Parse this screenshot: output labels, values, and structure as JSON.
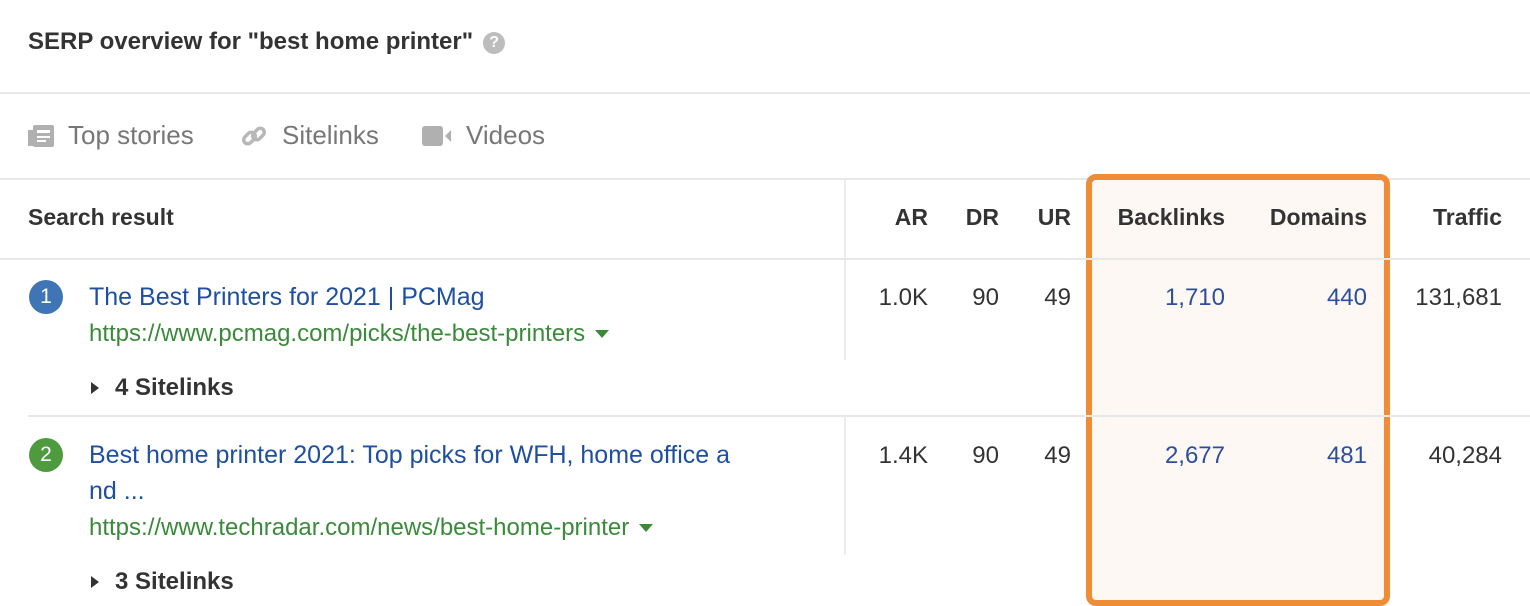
{
  "header": {
    "title": "SERP overview for \"best home printer\"",
    "help_icon": "?"
  },
  "tabs": [
    {
      "label": "Top stories",
      "icon": "newspaper-icon"
    },
    {
      "label": "Sitelinks",
      "icon": "link-icon"
    },
    {
      "label": "Videos",
      "icon": "video-camera-icon"
    }
  ],
  "columns": {
    "search_result": "Search result",
    "ar": "AR",
    "dr": "DR",
    "ur": "UR",
    "backlinks": "Backlinks",
    "domains": "Domains",
    "traffic": "Traffic"
  },
  "highlight_color": "#ee8d35",
  "rows": [
    {
      "position": "1",
      "badge_color": "#3f74b5",
      "title": "The Best Printers for 2021 | PCMag",
      "url": "https://www.pcmag.com/picks/the-best-printers",
      "ar": "1.0K",
      "dr": "90",
      "ur": "49",
      "backlinks": "1,710",
      "domains": "440",
      "traffic": "131,681",
      "sitelinks": "4 Sitelinks"
    },
    {
      "position": "2",
      "badge_color": "#4e9a3f",
      "title": "Best home printer 2021: Top picks for WFH, home office a",
      "title_cont": "nd ...",
      "url": "https://www.techradar.com/news/best-home-printer",
      "ar": "1.4K",
      "dr": "90",
      "ur": "49",
      "backlinks": "2,677",
      "domains": "481",
      "traffic": "40,284",
      "sitelinks": "3 Sitelinks"
    }
  ]
}
